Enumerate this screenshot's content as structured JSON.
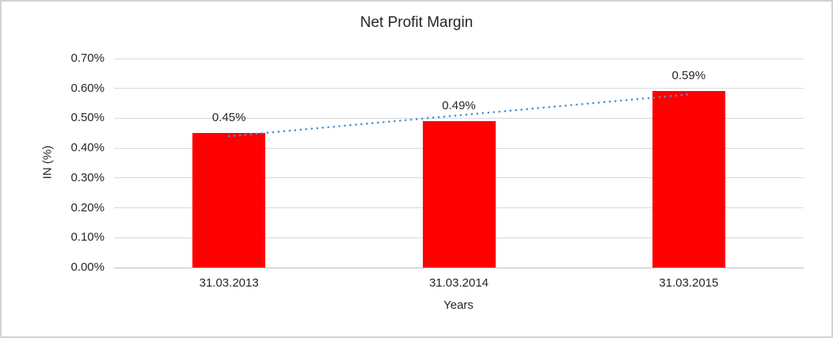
{
  "colors": {
    "bar": "#FF0000",
    "trendline": "#4F90D0",
    "gridline": "#D9D9D9",
    "axis_line": "#BFBFBF",
    "text": "#262626",
    "border": "#D2D2D6"
  },
  "chart_data": {
    "type": "bar",
    "title": "Net Profit Margin",
    "xlabel": "Years",
    "ylabel": "IN (%)",
    "categories": [
      "31.03.2013",
      "31.03.2014",
      "31.03.2015"
    ],
    "values": [
      0.45,
      0.49,
      0.59
    ],
    "value_labels": [
      "0.45%",
      "0.49%",
      "0.59%"
    ],
    "ylim": [
      0,
      0.7
    ],
    "ytick_step": 0.1,
    "ytick_labels": [
      "0.00%",
      "0.10%",
      "0.20%",
      "0.30%",
      "0.40%",
      "0.50%",
      "0.60%",
      "0.70%"
    ],
    "grid": true,
    "legend": "none",
    "trendline": {
      "style": "dotted",
      "color": "#4F90D0",
      "endpoint_values": [
        0.44,
        0.58
      ]
    }
  }
}
